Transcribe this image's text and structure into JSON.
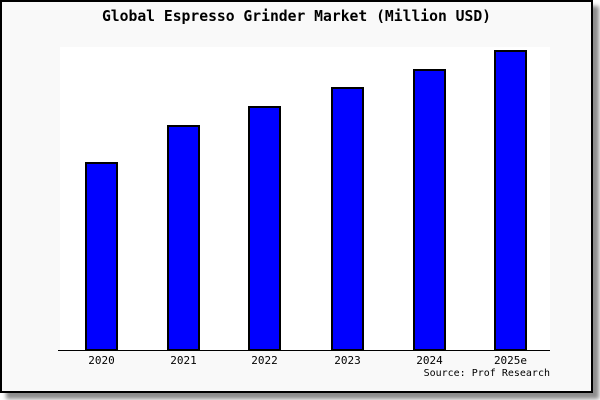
{
  "title": "Global Espresso Grinder Market (Million USD)",
  "source_note": "Source: Prof Research",
  "colors": {
    "bar_fill": "#0000ff",
    "bar_border": "#000000",
    "frame_background": "#f9f9f9",
    "plot_background": "#ffffff",
    "axis": "#000000",
    "frame_border": "#000000",
    "text": "#000000"
  },
  "chart_data": {
    "type": "bar",
    "title": "Global Espresso Grinder Market (Million USD)",
    "categories": [
      "2020",
      "2021",
      "2022",
      "2023",
      "2024",
      "2025e"
    ],
    "values": [
      189,
      226,
      245,
      264,
      282,
      301
    ],
    "values_note": "relative estimated heights; no numeric y-axis shown in chart",
    "xlabel": "",
    "ylabel": "",
    "y_axis_visible": false,
    "gridlines": false,
    "legend": false,
    "source": "Source: Prof Research",
    "bar_color": "#0000ff"
  }
}
